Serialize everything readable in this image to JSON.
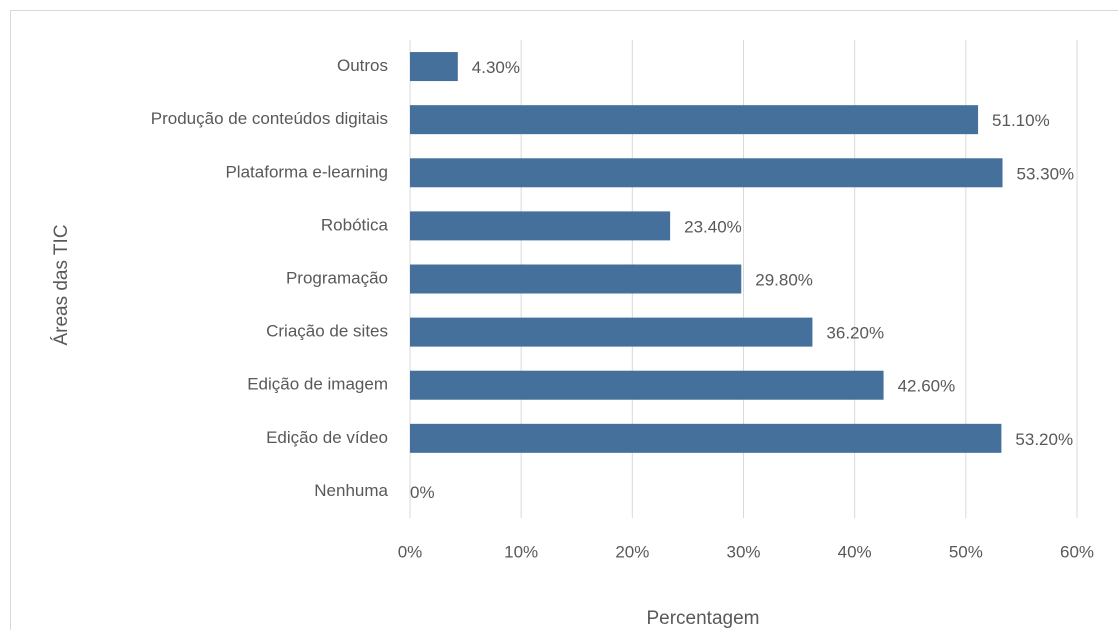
{
  "chart_data": {
    "type": "bar",
    "orientation": "horizontal",
    "y_label": "Áreas das TIC",
    "x_label": "Percentagem",
    "categories": [
      "Nenhuma",
      "Edição de vídeo ",
      "Edição de imagem",
      "Criação de sites",
      "Programação",
      "Robótica",
      "Plataforma e-learning",
      "Produção de conteúdos digitais",
      "Outros"
    ],
    "values": [
      0,
      53.2,
      42.6,
      36.2,
      29.8,
      23.4,
      53.3,
      51.1,
      4.3
    ],
    "value_labels": [
      "0%",
      "53.20%",
      "42.60%",
      "36.20%",
      "29.80%",
      "23.40%",
      "53.30%",
      "51.10%",
      "4.30%"
    ],
    "color": "#44709b",
    "xlim": [
      0,
      60
    ],
    "xticks": [
      {
        "value": 0,
        "label": "0%"
      },
      {
        "value": 10,
        "label": "10%"
      },
      {
        "value": 20,
        "label": "20%"
      },
      {
        "value": 30,
        "label": "30%"
      },
      {
        "value": 40,
        "label": "40%"
      },
      {
        "value": 50,
        "label": "50%"
      },
      {
        "value": 60,
        "label": "60%"
      }
    ],
    "grid": true
  }
}
